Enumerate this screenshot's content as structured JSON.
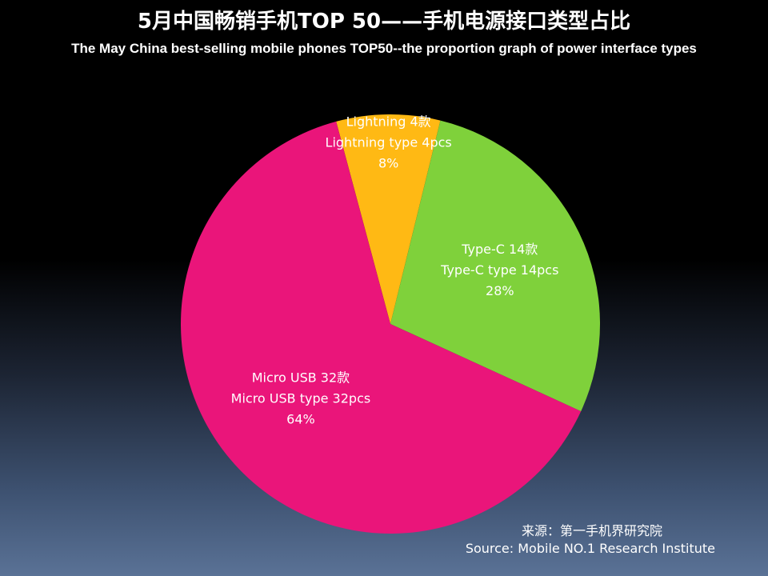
{
  "title_cn": "5月中国畅销手机TOP 50——手机电源接口类型占比",
  "title_en": "The May China best-selling mobile phones TOP50--the proportion graph of power interface types",
  "source_cn": "来源：第一手机界研究院",
  "source_en": "Source: Mobile NO.1 Research Institute",
  "chart_data": {
    "type": "pie",
    "title": "5月中国畅销手机TOP 50——手机电源接口类型占比",
    "subtitle": "The May China best-selling mobile phones TOP50--the proportion graph of power interface types",
    "start_angle_deg": -15,
    "slices": [
      {
        "label_cn": "Lightning 4款",
        "label_en": "Lightning type 4pcs",
        "percent_label": "8%",
        "value": 4,
        "percent": 8,
        "color": "#ffb914",
        "label_color": "#ffffff"
      },
      {
        "label_cn": "Type-C 14款",
        "label_en": "Type-C type 14pcs",
        "percent_label": "28%",
        "value": 14,
        "percent": 28,
        "color": "#7fd13b",
        "label_color": "#ffffff"
      },
      {
        "label_cn": "Micro USB 32款",
        "label_en": "Micro USB type 32pcs",
        "percent_label": "64%",
        "value": 32,
        "percent": 64,
        "color": "#ea157a",
        "label_color": "#ffffff"
      }
    ]
  }
}
